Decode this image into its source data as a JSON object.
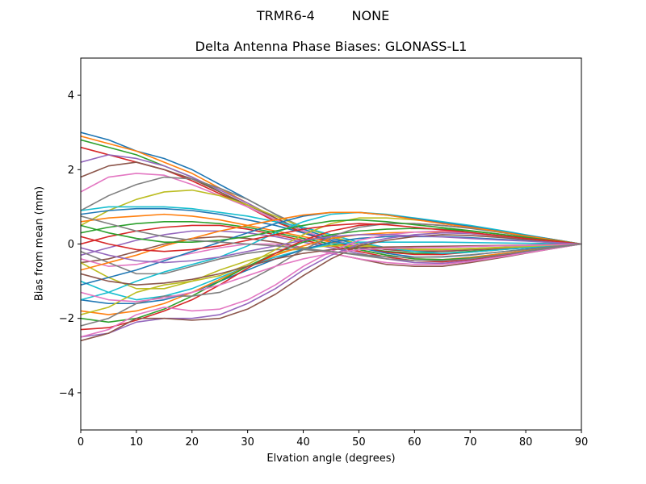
{
  "figure": {
    "suptitle": "TRMR6-4         NONE"
  },
  "chart_data": {
    "type": "line",
    "title": "Delta Antenna Phase Biases: GLONASS-L1",
    "xlabel": "Elvation angle (degrees)",
    "ylabel": "Bias from mean (mm)",
    "xlim": [
      0,
      90
    ],
    "ylim": [
      -5,
      5
    ],
    "x_ticks": [
      0,
      10,
      20,
      30,
      40,
      50,
      60,
      70,
      80,
      90
    ],
    "y_ticks": [
      -4,
      -2,
      0,
      2,
      4
    ],
    "y_tick_labels": [
      "−4",
      "−2",
      "0",
      "2",
      "4"
    ],
    "grid": false,
    "legend": "none",
    "x": [
      0,
      5,
      10,
      15,
      20,
      25,
      30,
      35,
      40,
      45,
      50,
      55,
      60,
      65,
      70,
      75,
      80,
      85,
      90
    ],
    "series": [
      {
        "values": [
          3.0,
          2.8,
          2.5,
          2.3,
          2.0,
          1.6,
          1.2,
          0.8,
          0.4,
          0.15,
          0.0,
          -0.1,
          -0.15,
          -0.15,
          -0.12,
          -0.1,
          -0.08,
          -0.04,
          0.0
        ]
      },
      {
        "values": [
          2.9,
          2.7,
          2.5,
          2.2,
          1.9,
          1.5,
          1.1,
          0.7,
          0.35,
          0.1,
          -0.05,
          -0.12,
          -0.18,
          -0.18,
          -0.15,
          -0.12,
          -0.08,
          -0.04,
          0.0
        ]
      },
      {
        "values": [
          2.8,
          2.6,
          2.4,
          2.1,
          1.8,
          1.4,
          1.0,
          0.65,
          0.3,
          0.05,
          -0.1,
          -0.2,
          -0.25,
          -0.25,
          -0.2,
          -0.15,
          -0.1,
          -0.05,
          0.0
        ]
      },
      {
        "values": [
          2.6,
          2.4,
          2.2,
          2.0,
          1.7,
          1.35,
          1.0,
          0.6,
          0.3,
          0.05,
          -0.1,
          -0.22,
          -0.28,
          -0.28,
          -0.22,
          -0.16,
          -0.1,
          -0.05,
          0.0
        ]
      },
      {
        "values": [
          2.2,
          2.4,
          2.3,
          2.1,
          1.8,
          1.45,
          1.1,
          0.7,
          0.35,
          0.1,
          -0.05,
          -0.15,
          -0.2,
          -0.2,
          -0.16,
          -0.12,
          -0.08,
          -0.04,
          0.0
        ]
      },
      {
        "values": [
          1.8,
          2.1,
          2.2,
          2.0,
          1.75,
          1.4,
          1.05,
          0.7,
          0.35,
          0.1,
          -0.05,
          -0.15,
          -0.2,
          -0.2,
          -0.16,
          -0.12,
          -0.08,
          -0.04,
          0.0
        ]
      },
      {
        "values": [
          1.4,
          1.8,
          1.9,
          1.85,
          1.6,
          1.3,
          1.0,
          0.65,
          0.35,
          0.1,
          -0.05,
          -0.12,
          -0.16,
          -0.16,
          -0.13,
          -0.1,
          -0.07,
          -0.03,
          0.0
        ]
      },
      {
        "values": [
          0.9,
          1.3,
          1.6,
          1.8,
          1.75,
          1.5,
          1.2,
          0.8,
          0.45,
          0.2,
          0.0,
          -0.1,
          -0.15,
          -0.15,
          -0.13,
          -0.1,
          -0.07,
          -0.03,
          0.0
        ]
      },
      {
        "values": [
          0.5,
          0.9,
          1.2,
          1.4,
          1.45,
          1.3,
          1.05,
          0.75,
          0.45,
          0.2,
          0.0,
          -0.1,
          -0.14,
          -0.14,
          -0.12,
          -0.09,
          -0.06,
          -0.03,
          0.0
        ]
      },
      {
        "values": [
          0.9,
          1.0,
          1.0,
          1.0,
          0.95,
          0.85,
          0.75,
          0.6,
          0.45,
          0.25,
          0.05,
          -0.1,
          -0.2,
          -0.25,
          -0.22,
          -0.16,
          -0.1,
          -0.05,
          0.0
        ]
      },
      {
        "values": [
          0.8,
          0.9,
          0.95,
          0.95,
          0.9,
          0.8,
          0.65,
          0.5,
          0.3,
          0.1,
          -0.1,
          -0.25,
          -0.35,
          -0.35,
          -0.3,
          -0.22,
          -0.14,
          -0.07,
          0.0
        ]
      },
      {
        "values": [
          0.6,
          0.7,
          0.75,
          0.8,
          0.75,
          0.65,
          0.5,
          0.35,
          0.2,
          0.05,
          -0.15,
          -0.3,
          -0.4,
          -0.42,
          -0.36,
          -0.27,
          -0.18,
          -0.09,
          0.0
        ]
      },
      {
        "values": [
          0.3,
          0.45,
          0.55,
          0.6,
          0.6,
          0.55,
          0.45,
          0.3,
          0.15,
          0.0,
          -0.15,
          -0.3,
          -0.4,
          -0.42,
          -0.38,
          -0.3,
          -0.2,
          -0.1,
          0.0
        ]
      },
      {
        "values": [
          0.0,
          0.2,
          0.35,
          0.45,
          0.5,
          0.5,
          0.4,
          0.25,
          0.1,
          -0.05,
          -0.2,
          -0.35,
          -0.45,
          -0.48,
          -0.42,
          -0.32,
          -0.21,
          -0.1,
          0.0
        ]
      },
      {
        "values": [
          -0.3,
          -0.1,
          0.1,
          0.25,
          0.35,
          0.35,
          0.3,
          0.2,
          0.05,
          -0.1,
          -0.25,
          -0.4,
          -0.5,
          -0.52,
          -0.45,
          -0.35,
          -0.23,
          -0.11,
          0.0
        ]
      },
      {
        "values": [
          -0.5,
          -0.4,
          -0.2,
          0.0,
          0.15,
          0.2,
          0.15,
          0.05,
          -0.1,
          -0.25,
          -0.4,
          -0.55,
          -0.6,
          -0.6,
          -0.5,
          -0.38,
          -0.25,
          -0.12,
          0.0
        ]
      },
      {
        "values": [
          -0.4,
          -0.6,
          -0.55,
          -0.4,
          -0.25,
          -0.1,
          0.0,
          0.0,
          -0.1,
          -0.25,
          -0.4,
          -0.5,
          -0.55,
          -0.55,
          -0.47,
          -0.36,
          -0.24,
          -0.12,
          0.0
        ]
      },
      {
        "values": [
          -0.2,
          -0.5,
          -0.8,
          -0.8,
          -0.6,
          -0.4,
          -0.25,
          -0.15,
          -0.15,
          -0.2,
          -0.3,
          -0.4,
          -0.45,
          -0.45,
          -0.4,
          -0.3,
          -0.2,
          -0.1,
          0.0
        ]
      },
      {
        "values": [
          -0.5,
          -0.9,
          -1.2,
          -1.2,
          -1.0,
          -0.7,
          -0.45,
          -0.25,
          -0.1,
          -0.05,
          -0.05,
          -0.1,
          -0.15,
          -0.15,
          -0.13,
          -0.1,
          -0.07,
          -0.03,
          0.0
        ]
      },
      {
        "values": [
          -1.0,
          -1.3,
          -1.5,
          -1.4,
          -1.2,
          -0.9,
          -0.6,
          -0.35,
          -0.15,
          0.0,
          0.05,
          0.05,
          0.05,
          0.05,
          0.04,
          0.03,
          0.02,
          0.01,
          0.0
        ]
      },
      {
        "values": [
          -1.5,
          -1.6,
          -1.6,
          -1.5,
          -1.3,
          -1.0,
          -0.7,
          -0.4,
          -0.15,
          0.05,
          0.15,
          0.2,
          0.2,
          0.2,
          0.17,
          0.13,
          0.09,
          0.04,
          0.0
        ]
      },
      {
        "values": [
          -1.8,
          -1.9,
          -1.8,
          -1.6,
          -1.3,
          -0.95,
          -0.6,
          -0.3,
          -0.05,
          0.15,
          0.25,
          0.3,
          0.32,
          0.32,
          0.28,
          0.21,
          0.14,
          0.07,
          0.0
        ]
      },
      {
        "values": [
          -2.0,
          -2.1,
          -2.0,
          -1.75,
          -1.4,
          -1.0,
          -0.6,
          -0.25,
          0.05,
          0.25,
          0.35,
          0.4,
          0.42,
          0.4,
          0.35,
          0.27,
          0.18,
          0.09,
          0.0
        ]
      },
      {
        "values": [
          -2.3,
          -2.25,
          -2.05,
          -1.8,
          -1.5,
          -1.1,
          -0.65,
          -0.25,
          0.1,
          0.35,
          0.5,
          0.55,
          0.55,
          0.5,
          0.43,
          0.33,
          0.22,
          0.11,
          0.0
        ]
      },
      {
        "values": [
          -2.5,
          -2.4,
          -2.1,
          -2.0,
          -2.0,
          -1.9,
          -1.6,
          -1.2,
          -0.7,
          -0.3,
          0.0,
          0.15,
          0.25,
          0.3,
          0.28,
          0.22,
          0.15,
          0.07,
          0.0
        ]
      },
      {
        "values": [
          -2.6,
          -2.4,
          -2.0,
          -2.0,
          -2.05,
          -2.0,
          -1.75,
          -1.35,
          -0.85,
          -0.4,
          -0.05,
          0.1,
          0.2,
          0.25,
          0.23,
          0.18,
          0.12,
          0.06,
          0.0
        ]
      },
      {
        "values": [
          -2.5,
          -2.3,
          -1.9,
          -1.7,
          -1.8,
          -1.75,
          -1.5,
          -1.1,
          -0.6,
          -0.2,
          0.1,
          0.25,
          0.32,
          0.35,
          0.3,
          0.23,
          0.15,
          0.08,
          0.0
        ]
      },
      {
        "values": [
          -2.2,
          -2.0,
          -1.6,
          -1.4,
          -1.4,
          -1.3,
          -1.0,
          -0.6,
          -0.15,
          0.2,
          0.45,
          0.55,
          0.55,
          0.5,
          0.42,
          0.32,
          0.21,
          0.1,
          0.0
        ]
      },
      {
        "values": [
          -1.9,
          -1.7,
          -1.3,
          -1.1,
          -1.0,
          -0.85,
          -0.55,
          -0.15,
          0.25,
          0.55,
          0.7,
          0.7,
          0.65,
          0.58,
          0.48,
          0.36,
          0.24,
          0.12,
          0.0
        ]
      },
      {
        "values": [
          -1.5,
          -1.3,
          -1.0,
          -0.75,
          -0.55,
          -0.35,
          -0.05,
          0.3,
          0.6,
          0.8,
          0.85,
          0.8,
          0.7,
          0.6,
          0.5,
          0.38,
          0.25,
          0.12,
          0.0
        ]
      },
      {
        "values": [
          -1.1,
          -0.9,
          -0.7,
          -0.45,
          -0.2,
          0.05,
          0.3,
          0.55,
          0.75,
          0.85,
          0.85,
          0.78,
          0.68,
          0.57,
          0.47,
          0.35,
          0.23,
          0.12,
          0.0
        ]
      },
      {
        "values": [
          -0.7,
          -0.5,
          -0.3,
          -0.05,
          0.15,
          0.35,
          0.5,
          0.65,
          0.78,
          0.85,
          0.85,
          0.78,
          0.66,
          0.55,
          0.45,
          0.34,
          0.22,
          0.11,
          0.0
        ]
      },
      {
        "values": [
          0.5,
          0.3,
          0.15,
          0.05,
          0.05,
          0.1,
          0.2,
          0.35,
          0.5,
          0.62,
          0.65,
          0.6,
          0.52,
          0.44,
          0.36,
          0.27,
          0.18,
          0.09,
          0.0
        ]
      },
      {
        "values": [
          0.2,
          0.0,
          -0.15,
          -0.2,
          -0.15,
          -0.05,
          0.1,
          0.25,
          0.4,
          0.5,
          0.55,
          0.52,
          0.45,
          0.38,
          0.31,
          0.23,
          0.15,
          0.08,
          0.0
        ]
      },
      {
        "values": [
          -0.1,
          -0.3,
          -0.45,
          -0.5,
          -0.45,
          -0.35,
          -0.2,
          -0.05,
          0.1,
          0.2,
          0.25,
          0.25,
          0.22,
          0.19,
          0.15,
          0.11,
          0.08,
          0.04,
          0.0
        ]
      },
      {
        "values": [
          -0.8,
          -1.0,
          -1.1,
          -1.05,
          -0.95,
          -0.8,
          -0.6,
          -0.4,
          -0.25,
          -0.15,
          -0.1,
          -0.08,
          -0.07,
          -0.06,
          -0.05,
          -0.04,
          -0.03,
          -0.01,
          0.0
        ]
      },
      {
        "values": [
          -1.3,
          -1.5,
          -1.55,
          -1.45,
          -1.3,
          -1.1,
          -0.85,
          -0.6,
          -0.4,
          -0.25,
          -0.15,
          -0.12,
          -0.1,
          -0.09,
          -0.07,
          -0.05,
          -0.04,
          -0.02,
          0.0
        ]
      },
      {
        "values": [
          0.75,
          0.55,
          0.35,
          0.2,
          0.1,
          0.05,
          0.0,
          -0.05,
          -0.12,
          -0.2,
          -0.28,
          -0.34,
          -0.36,
          -0.34,
          -0.29,
          -0.22,
          -0.15,
          -0.07,
          0.0
        ]
      }
    ]
  }
}
